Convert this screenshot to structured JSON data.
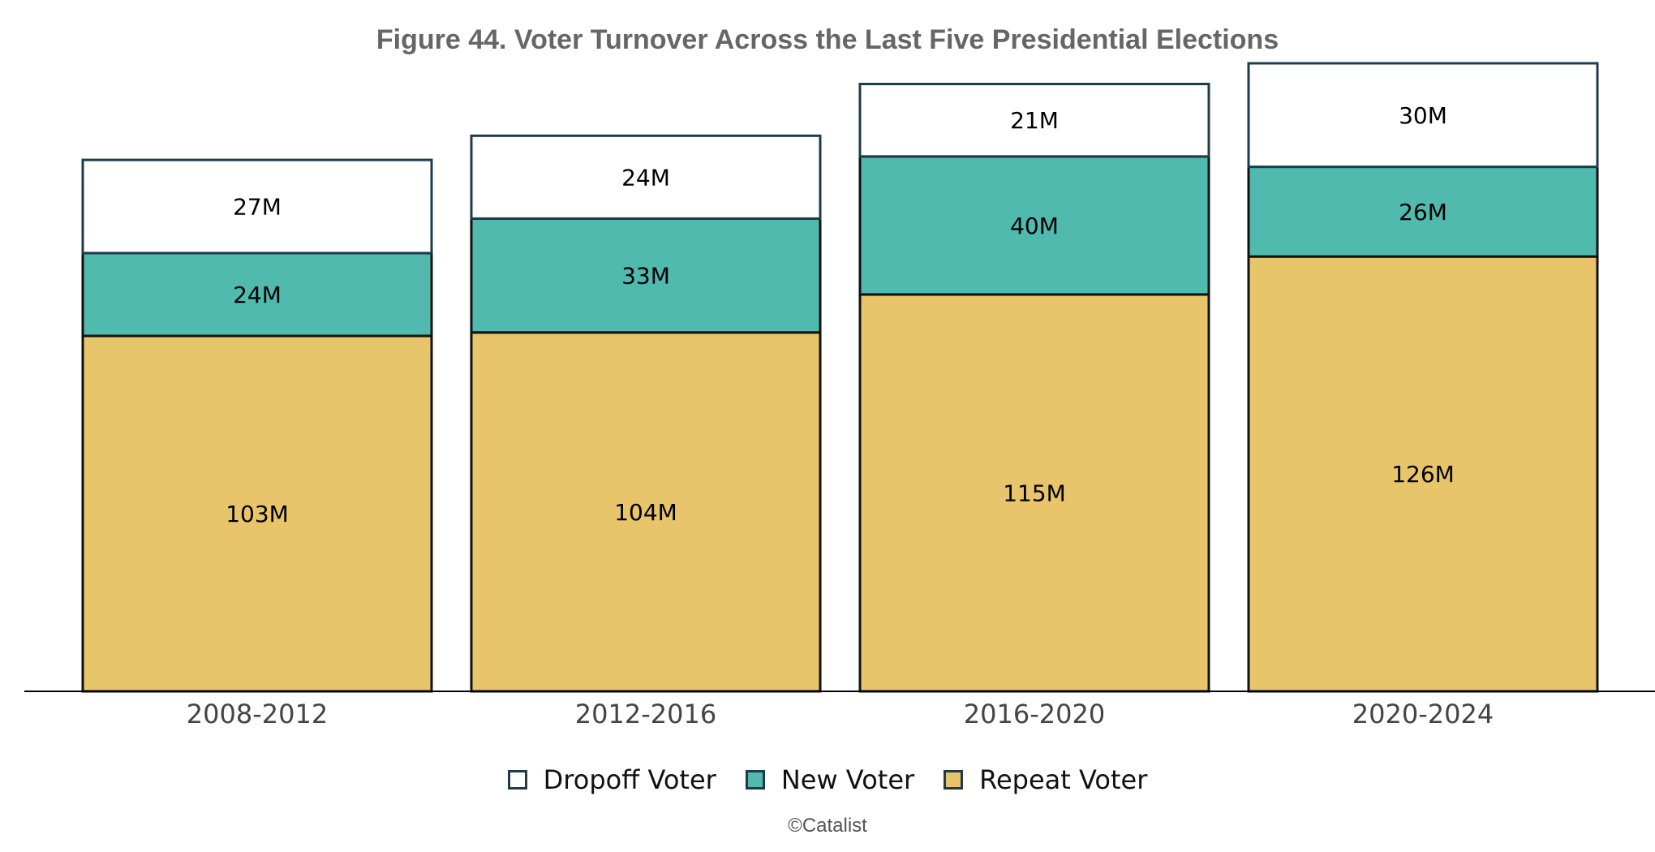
{
  "chart_data": {
    "type": "bar",
    "stacked": true,
    "title": "Figure 44. Voter Turnover Across the Last Five Presidential Elections",
    "xlabel": "",
    "ylabel": "",
    "categories": [
      "2008-2012",
      "2012-2016",
      "2016-2020",
      "2020-2024"
    ],
    "series": [
      {
        "name": "Repeat Voter",
        "color": "#E8C46B",
        "values": [
          103,
          104,
          115,
          126
        ],
        "labels": [
          "103M",
          "104M",
          "115M",
          "126M"
        ]
      },
      {
        "name": "New Voter",
        "color": "#50BAAE",
        "values": [
          24,
          33,
          40,
          26
        ],
        "labels": [
          "24M",
          "33M",
          "40M",
          "26M"
        ]
      },
      {
        "name": "Dropoff Voter",
        "color": "#FFFFFF",
        "values": [
          27,
          24,
          21,
          30
        ],
        "labels": [
          "27M",
          "24M",
          "21M",
          "30M"
        ]
      }
    ],
    "ylim": [
      0,
      182
    ],
    "grid": false,
    "legend_position": "bottom"
  },
  "legend": {
    "items": [
      {
        "label": "Dropoff Voter",
        "color": "#FFFFFF"
      },
      {
        "label": "New Voter",
        "color": "#50BAAE"
      },
      {
        "label": "Repeat Voter",
        "color": "#E8C46B"
      }
    ]
  },
  "source": "©Catalist"
}
